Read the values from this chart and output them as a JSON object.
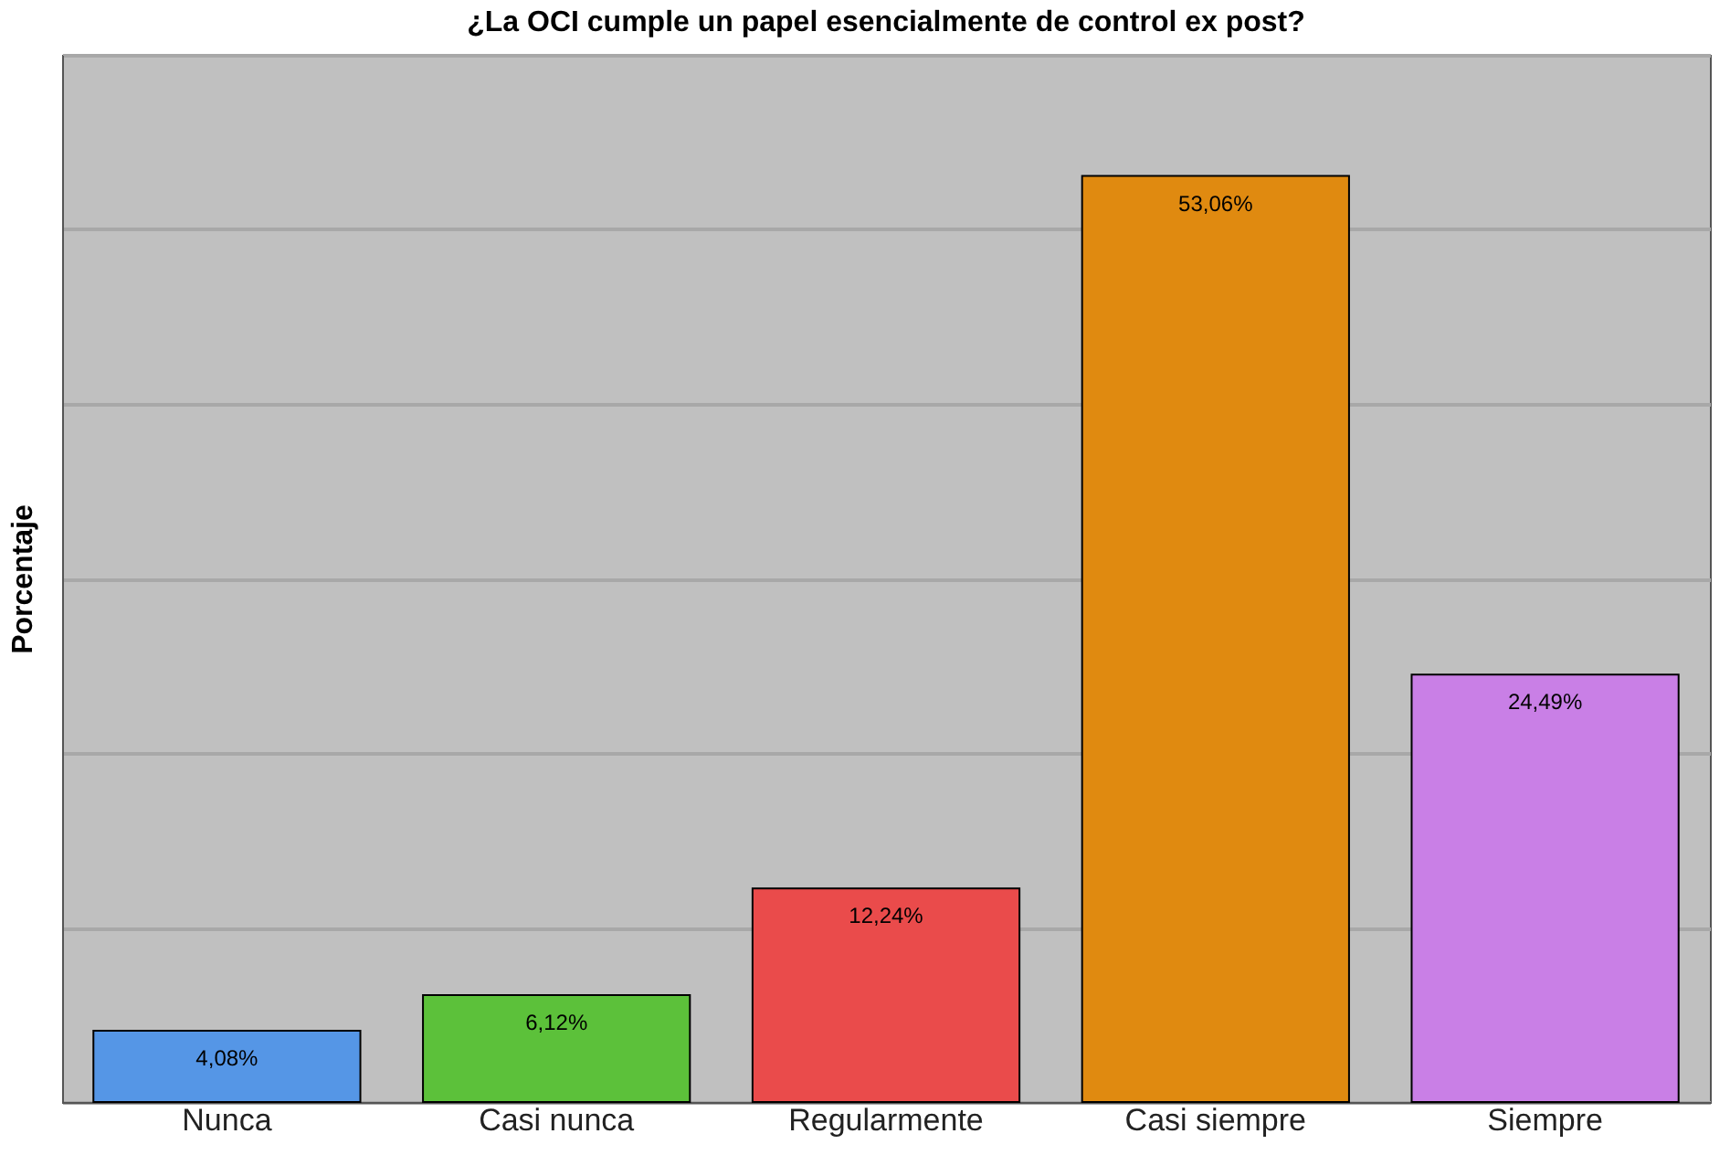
{
  "chart_data": {
    "type": "bar",
    "title": "¿La OCI cumple un papel esencialmente de control ex post?",
    "ylabel": "Porcentaje",
    "categories": [
      "Nunca",
      "Casi nunca",
      "Regularmente",
      "Casi siempre",
      "Siempre"
    ],
    "values": [
      4.08,
      6.12,
      12.24,
      53.06,
      24.49
    ],
    "colors": [
      "#5596e6",
      "#5cc13a",
      "#ea4b4b",
      "#e08a10",
      "#c97fe6"
    ],
    "value_labels": [
      "4,08%",
      "6,12%",
      "12,24%",
      "53,06%",
      "24,49%"
    ],
    "ylim": [
      0,
      60
    ],
    "yticks": [
      {
        "value": 0,
        "label": null
      },
      {
        "value": 10,
        "label": null
      },
      {
        "value": 20,
        "label": null
      },
      {
        "value": 30,
        "label": null
      },
      {
        "value": 40,
        "label": null
      },
      {
        "value": 50,
        "label": null
      },
      {
        "value": 60,
        "label": null
      }
    ],
    "grid": "y",
    "tick_labels": "x"
  }
}
